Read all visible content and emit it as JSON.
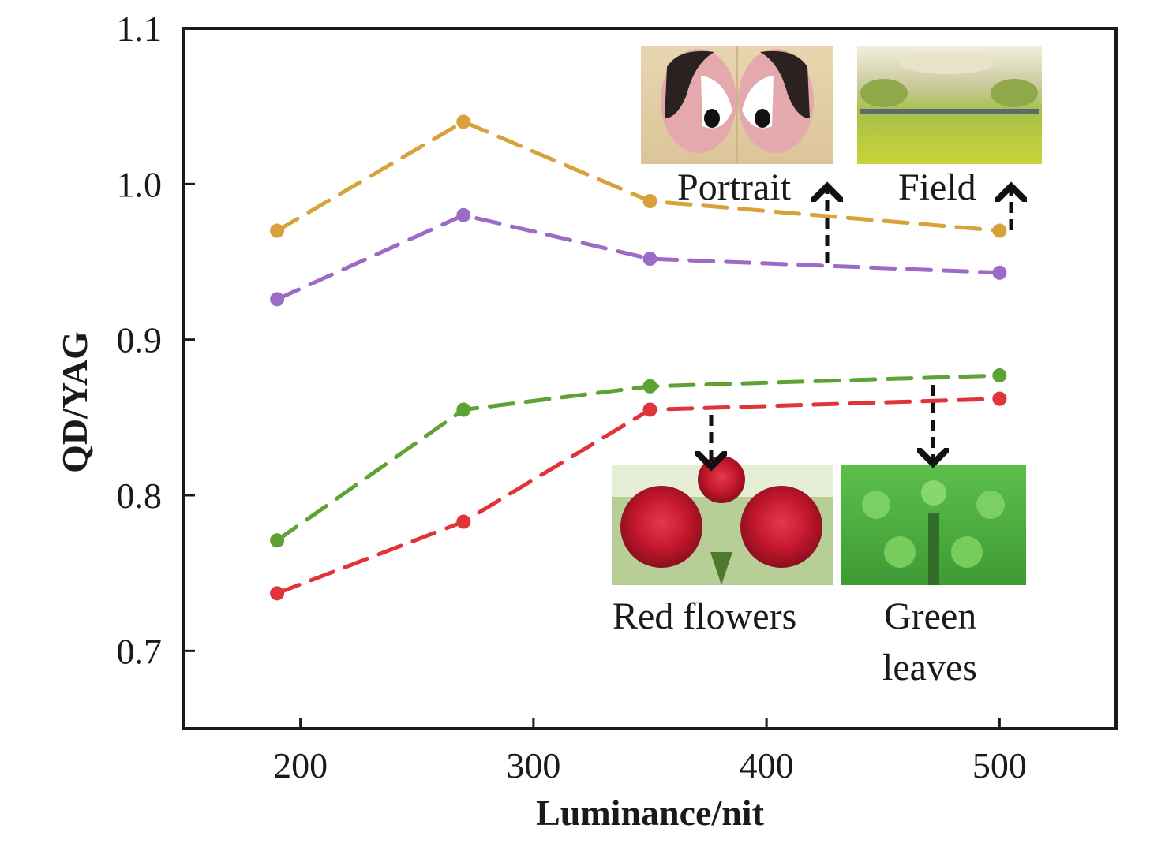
{
  "chart_data": {
    "type": "line",
    "xlabel": "Luminance/nit",
    "ylabel": "QD/YAG",
    "xlim": [
      150,
      550
    ],
    "ylim": [
      0.65,
      1.1
    ],
    "x_ticks": [
      "200",
      "300",
      "400",
      "500"
    ],
    "y_ticks": [
      "0.7",
      "0.8",
      "0.9",
      "1.0",
      "1.1"
    ],
    "x": [
      190,
      270,
      350,
      500
    ],
    "series": [
      {
        "color": "#d9a13a",
        "values": [
          0.97,
          1.04,
          0.989,
          0.97
        ]
      },
      {
        "color": "#9b6bc6",
        "values": [
          0.926,
          0.98,
          0.952,
          0.943
        ]
      },
      {
        "color": "#5ea135",
        "values": [
          0.771,
          0.855,
          0.87,
          0.877
        ]
      },
      {
        "color": "#e0333a",
        "values": [
          0.737,
          0.783,
          0.855,
          0.862
        ]
      }
    ],
    "annotations": [
      {
        "label": "Portrait",
        "image": "portrait-thumbnail"
      },
      {
        "label": "Field",
        "image": "field-thumbnail"
      },
      {
        "label": "Red flowers",
        "image": "red-flowers-thumbnail"
      },
      {
        "label": "Green leaves",
        "image": "green-leaves-thumbnail"
      }
    ],
    "grid": false
  }
}
